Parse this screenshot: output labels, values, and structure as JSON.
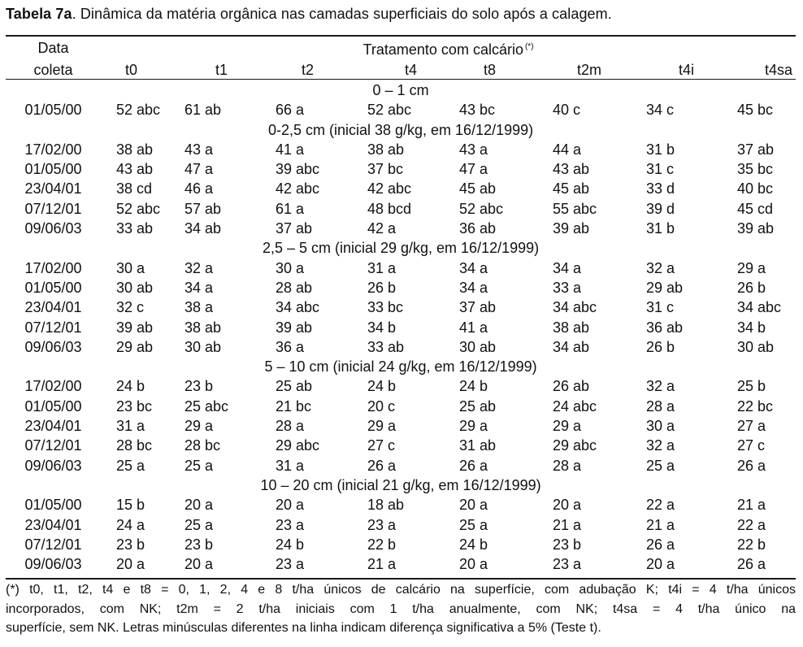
{
  "caption": {
    "label": "Tabela 7a",
    "text": ". Dinâmica da matéria orgânica nas camadas superficiais do solo após a calagem."
  },
  "header": {
    "date_line1": "Data",
    "date_line2": "coleta",
    "treatment": "Tratamento com calcário",
    "treatment_mark": "(*)",
    "columns": [
      "t0",
      "t1",
      "t2",
      "t4",
      "t8",
      "t2m",
      "t4i",
      "t4sa"
    ]
  },
  "sections": [
    {
      "title": "0 – 1 cm",
      "rows": [
        {
          "date": "01/05/00",
          "values": [
            "52 abc",
            "61 ab",
            "66 a",
            "52 abc",
            "43 bc",
            "40 c",
            "34 c",
            "45 bc"
          ]
        }
      ]
    },
    {
      "title": "0-2,5 cm  (inicial 38 g/kg, em 16/12/1999)",
      "rows": [
        {
          "date": "17/02/00",
          "values": [
            "38 ab",
            "43 a",
            "41 a",
            "38 ab",
            "43 a",
            "44 a",
            "31 b",
            "37 ab"
          ]
        },
        {
          "date": "01/05/00",
          "values": [
            "43 ab",
            "47 a",
            "39 abc",
            "37 bc",
            "47 a",
            "43 ab",
            "31 c",
            "35 bc"
          ]
        },
        {
          "date": "23/04/01",
          "values": [
            "38 cd",
            "46 a",
            "42 abc",
            "42 abc",
            "45 ab",
            "45 ab",
            "33 d",
            "40 bc"
          ]
        },
        {
          "date": "07/12/01",
          "values": [
            "52 abc",
            "57 ab",
            "61 a",
            "48 bcd",
            "52 abc",
            "55 abc",
            "39 d",
            "45 cd"
          ]
        },
        {
          "date": "09/06/03",
          "values": [
            "33 ab",
            "34 ab",
            "37 ab",
            "42 a",
            "36 ab",
            "39 ab",
            "31 b",
            "39 ab"
          ]
        }
      ]
    },
    {
      "title": "2,5 – 5 cm  (inicial 29 g/kg, em 16/12/1999)",
      "rows": [
        {
          "date": "17/02/00",
          "values": [
            "30 a",
            "32 a",
            "30 a",
            "31 a",
            "34 a",
            "34 a",
            "32 a",
            "29 a"
          ]
        },
        {
          "date": "01/05/00",
          "values": [
            "30 ab",
            "34 a",
            "28 ab",
            "26 b",
            "34 a",
            "33 a",
            "29 ab",
            "26 b"
          ]
        },
        {
          "date": "23/04/01",
          "values": [
            "32 c",
            "38 a",
            "34 abc",
            "33 bc",
            "37 ab",
            "34 abc",
            "31 c",
            "34 abc"
          ]
        },
        {
          "date": "07/12/01",
          "values": [
            "39 ab",
            "38 ab",
            "39 ab",
            "34 b",
            "41 a",
            "38 ab",
            "36 ab",
            "34 b"
          ]
        },
        {
          "date": "09/06/03",
          "values": [
            "29 ab",
            "30 ab",
            "36 a",
            "33 ab",
            "30 ab",
            "34 ab",
            "26 b",
            "30 ab"
          ]
        }
      ]
    },
    {
      "title": "5 – 10 cm  (inicial 24 g/kg, em 16/12/1999)",
      "rows": [
        {
          "date": "17/02/00",
          "values": [
            "24 b",
            "23 b",
            "25 ab",
            "24 b",
            "24 b",
            "26 ab",
            "32 a",
            "25 b"
          ]
        },
        {
          "date": "01/05/00",
          "values": [
            "23 bc",
            "25 abc",
            "21 bc",
            "20 c",
            "25 ab",
            "24 abc",
            "28 a",
            "22 bc"
          ]
        },
        {
          "date": "23/04/01",
          "values": [
            "31 a",
            "29 a",
            "28 a",
            "29 a",
            "29 a",
            "29 a",
            "30 a",
            "27 a"
          ]
        },
        {
          "date": "07/12/01",
          "values": [
            "28 bc",
            "28 bc",
            "29 abc",
            "27 c",
            "31 ab",
            "29 abc",
            "32 a",
            "27 c"
          ]
        },
        {
          "date": "09/06/03",
          "values": [
            "25 a",
            "25 a",
            "31 a",
            "26 a",
            "26 a",
            "28 a",
            "25 a",
            "26 a"
          ]
        }
      ]
    },
    {
      "title": "10 – 20 cm  (inicial 21 g/kg, em 16/12/1999)",
      "rows": [
        {
          "date": "01/05/00",
          "values": [
            "15 b",
            "20 a",
            "20 a",
            "18 ab",
            "20 a",
            "20 a",
            "22 a",
            "21 a"
          ]
        },
        {
          "date": "23/04/01",
          "values": [
            "24 a",
            "25 a",
            "23 a",
            "23 a",
            "25 a",
            "21 a",
            "21 a",
            "22 a"
          ]
        },
        {
          "date": "07/12/01",
          "values": [
            "23 b",
            "23 b",
            "24 b",
            "22 b",
            "24 b",
            "23 b",
            "26 a",
            "22 b"
          ]
        },
        {
          "date": "09/06/03",
          "values": [
            "20 a",
            "20 a",
            "23 a",
            "21 a",
            "20 a",
            "23 a",
            "20 a",
            "26 a"
          ]
        }
      ]
    }
  ],
  "footnote": {
    "line1": "(*) t0, t1, t2, t4 e t8 = 0, 1, 2, 4 e 8 t/ha únicos de calcário na superfície, com adubação K; t4i = 4 t/ha únicos",
    "line2": "incorporados, com NK; t2m = 2 t/ha iniciais com 1 t/ha anualmente, com NK; t4sa = 4 t/ha único na",
    "line3": "superfície, sem NK. Letras minúsculas diferentes na linha indicam diferença significativa a 5% (Teste t)."
  }
}
